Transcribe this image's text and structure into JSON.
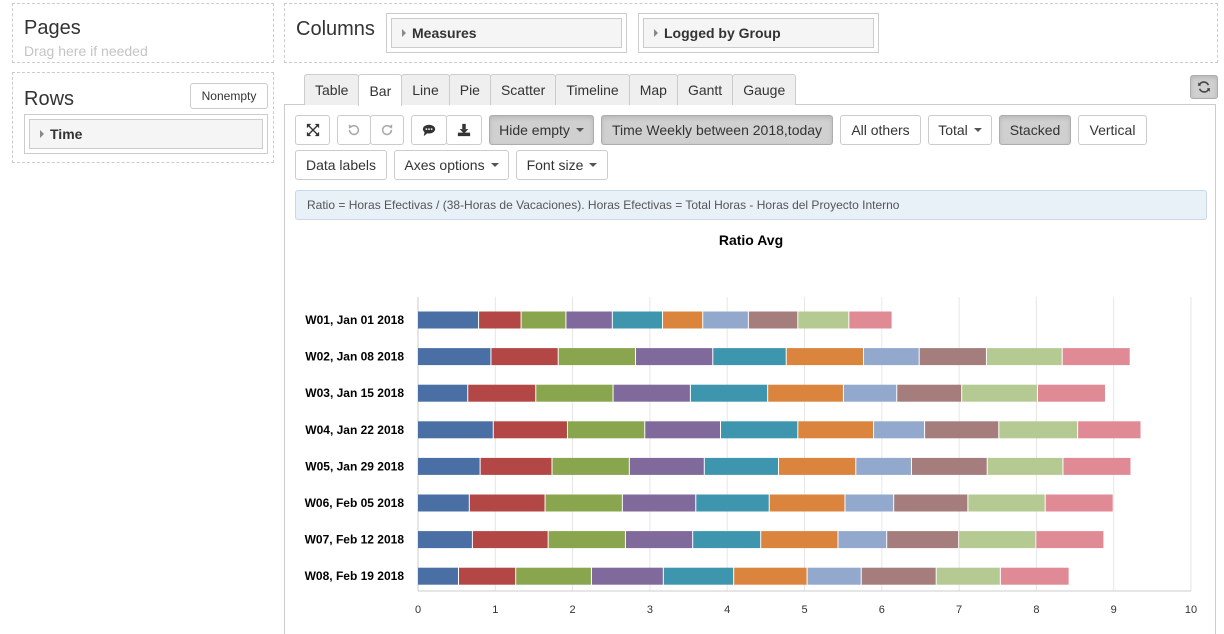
{
  "pages": {
    "title": "Pages",
    "hint": "Drag here if needed"
  },
  "columns": {
    "title": "Columns",
    "items": [
      "Measures",
      "Logged by Group"
    ]
  },
  "rows": {
    "title": "Rows",
    "nonempty_label": "Nonempty",
    "items": [
      "Time"
    ]
  },
  "tabs": [
    "Table",
    "Bar",
    "Line",
    "Pie",
    "Scatter",
    "Timeline",
    "Map",
    "Gantt",
    "Gauge"
  ],
  "active_tab": "Bar",
  "toolbar": {
    "hide_empty": "Hide empty",
    "time_filter": "Time Weekly between 2018,today",
    "all_others": "All others",
    "total": "Total",
    "stacked": "Stacked",
    "vertical": "Vertical",
    "data_labels": "Data labels",
    "axes_options": "Axes options",
    "font_size": "Font size",
    "icons": [
      "fullscreen-icon",
      "undo-icon",
      "redo-icon",
      "comment-icon",
      "download-icon",
      "refresh-icon"
    ]
  },
  "info_text": "Ratio = Horas Efectivas / (38-Horas de Vacaciones). Horas Efectivas = Total Horas - Horas del Proyecto Interno",
  "chart_data": {
    "type": "bar",
    "orientation": "horizontal",
    "stacked": true,
    "title": "Ratio Avg",
    "xlim": [
      0,
      10
    ],
    "xticks": [
      "0",
      "1",
      "2",
      "3",
      "4",
      "5",
      "6",
      "7",
      "8",
      "9",
      "10"
    ],
    "grid": true,
    "categories": [
      "W01, Jan 01 2018",
      "W02, Jan 08 2018",
      "W03, Jan 15 2018",
      "W04, Jan 22 2018",
      "W05, Jan 29 2018",
      "W06, Feb 05 2018",
      "W07, Feb 12 2018",
      "W08, Feb 19 2018"
    ],
    "colors": [
      "#4a6fa5",
      "#b24745",
      "#89a54e",
      "#80699b",
      "#3d96ae",
      "#db843d",
      "#92a8cd",
      "#a47d7c",
      "#b5ca92",
      "#e08a96"
    ],
    "series": [
      {
        "values": [
          0.79,
          0.95,
          0.65,
          0.98,
          0.81,
          0.67,
          0.71,
          0.53
        ]
      },
      {
        "values": [
          0.55,
          0.87,
          0.88,
          0.96,
          0.93,
          0.98,
          0.98,
          0.74
        ]
      },
      {
        "values": [
          0.58,
          1.0,
          1.0,
          1.0,
          1.0,
          1.0,
          1.0,
          0.98
        ]
      },
      {
        "values": [
          0.6,
          1.0,
          1.0,
          0.98,
          0.97,
          0.95,
          0.87,
          0.93
        ]
      },
      {
        "values": [
          0.65,
          0.95,
          1.0,
          1.0,
          0.96,
          0.95,
          0.88,
          0.91
        ]
      },
      {
        "values": [
          0.52,
          1.0,
          0.98,
          0.98,
          1.0,
          0.98,
          1.0,
          0.95
        ]
      },
      {
        "values": [
          0.59,
          0.72,
          0.69,
          0.66,
          0.72,
          0.63,
          0.63,
          0.7
        ]
      },
      {
        "values": [
          0.64,
          0.87,
          0.84,
          0.96,
          0.98,
          0.96,
          0.93,
          0.97
        ]
      },
      {
        "values": [
          0.66,
          0.98,
          0.98,
          1.02,
          0.98,
          1.0,
          1.0,
          0.83
        ]
      },
      {
        "values": [
          0.56,
          0.88,
          0.88,
          0.82,
          0.88,
          0.88,
          0.88,
          0.89
        ]
      }
    ]
  }
}
